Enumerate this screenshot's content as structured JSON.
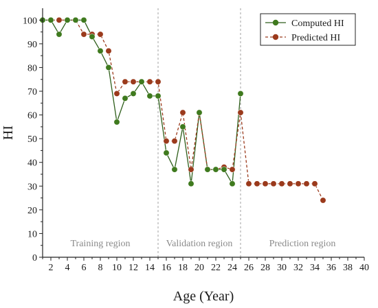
{
  "chart_data": {
    "type": "line",
    "xlabel": "Age (Year)",
    "ylabel": "HI",
    "xlim": [
      1,
      40
    ],
    "ylim": [
      0,
      105
    ],
    "x_ticks": [
      2,
      4,
      6,
      8,
      10,
      12,
      14,
      16,
      18,
      20,
      22,
      24,
      26,
      28,
      30,
      32,
      34,
      36,
      38,
      40
    ],
    "y_ticks": [
      0,
      10,
      20,
      30,
      40,
      50,
      60,
      70,
      80,
      90,
      100
    ],
    "grid": false,
    "legend_position": "top-right",
    "region_dividers": [
      15,
      25
    ],
    "regions": [
      {
        "label": "Training region",
        "x_range": [
          1,
          15
        ]
      },
      {
        "label": "Validation region",
        "x_range": [
          15,
          25
        ]
      },
      {
        "label": "Prediction region",
        "x_range": [
          25,
          40
        ]
      }
    ],
    "series": [
      {
        "name": "Computed HI",
        "color": "#2e5e1a",
        "line_style": "solid",
        "marker_color": "#3f7a1e",
        "x": [
          1,
          2,
          3,
          4,
          5,
          6,
          7,
          8,
          9,
          10,
          11,
          12,
          13,
          14,
          15,
          16,
          17,
          18,
          19,
          20,
          21,
          22,
          23,
          24,
          25
        ],
        "y": [
          100,
          100,
          94,
          100,
          100,
          100,
          93,
          87,
          80,
          57,
          67,
          69,
          74,
          68,
          68,
          44,
          37,
          55,
          31,
          61,
          37,
          37,
          37,
          31,
          69
        ]
      },
      {
        "name": "Predicted HI",
        "color": "#9b3a1c",
        "line_style": "dashed",
        "marker_color": "#9b3a1c",
        "x": [
          1,
          2,
          3,
          4,
          5,
          6,
          7,
          8,
          9,
          10,
          11,
          12,
          13,
          14,
          15,
          16,
          17,
          18,
          19,
          20,
          21,
          22,
          23,
          24,
          25,
          26,
          27,
          28,
          29,
          30,
          31,
          32,
          33,
          34,
          35
        ],
        "y": [
          100,
          100,
          100,
          100,
          100,
          94,
          94,
          94,
          87,
          69,
          74,
          74,
          74,
          74,
          74,
          49,
          49,
          61,
          37,
          61,
          37,
          37,
          38,
          37,
          61,
          31,
          31,
          31,
          31,
          31,
          31,
          31,
          31,
          31,
          24
        ]
      }
    ]
  }
}
